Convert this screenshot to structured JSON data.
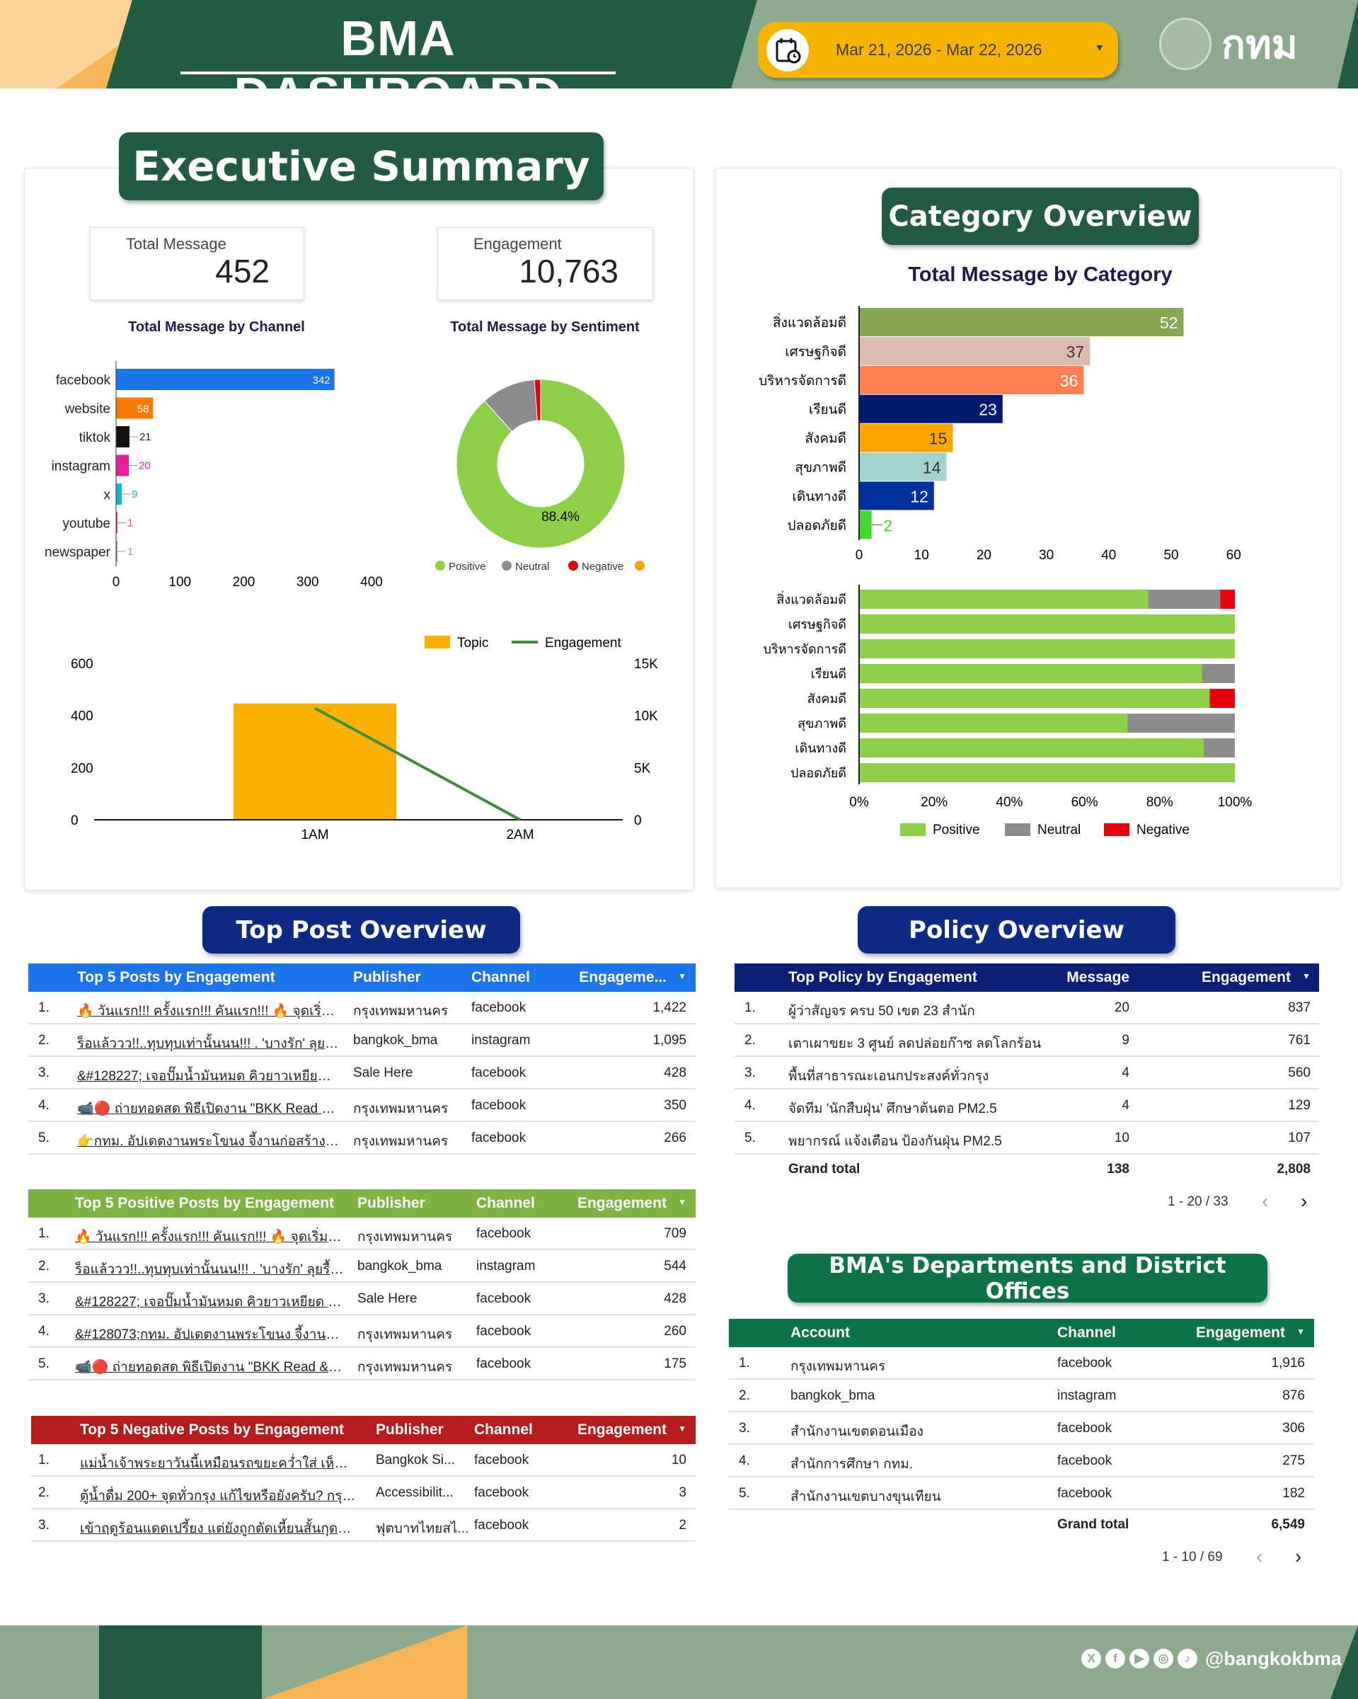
{
  "header": {
    "title": "BMA DASHBOARD",
    "date_range": "Mar 21, 2026 - Mar 22, 2026",
    "logo_text": "กทม",
    "calendar_icon": "calendar-clock-icon"
  },
  "exec": {
    "title": "Executive Summary",
    "kpis": [
      {
        "label": "Total Message",
        "value": "452"
      },
      {
        "label": "Engagement",
        "value": "10,763"
      }
    ]
  },
  "colors": {
    "dark_green": "#215c42",
    "positive": "#8bd046",
    "neutral": "#8c8c8c",
    "negative": "#e8000b",
    "topic": "#fbb100",
    "engagement_line": "#3c8c3c"
  },
  "chart_data": [
    {
      "type": "bar",
      "orientation": "horizontal",
      "title": "Total Message by Channel",
      "categories": [
        "facebook",
        "website",
        "tiktok",
        "instagram",
        "x",
        "youtube",
        "newspaper"
      ],
      "values": [
        342,
        58,
        21,
        20,
        9,
        1,
        1
      ],
      "colors": [
        "#1a73e8",
        "#f57c00",
        "#111111",
        "#e91e9c",
        "#12b5cb",
        "#d9485f",
        "#9e9e9e"
      ],
      "xlim": [
        0,
        400
      ],
      "xticks": [
        "0",
        "100",
        "200",
        "300",
        "400"
      ]
    },
    {
      "type": "pie",
      "donut": true,
      "title": "Total Message by Sentiment",
      "slices": [
        {
          "name": "Positive",
          "value": 88.4,
          "color": "#8bd046"
        },
        {
          "name": "Neutral",
          "value": 10.4,
          "color": "#8c8c8c"
        },
        {
          "name": "Negative",
          "value": 1.2,
          "color": "#e8000b"
        },
        {
          "name": "",
          "value": 0,
          "color": "#fba300"
        }
      ],
      "label": "88.4%",
      "legend": "bottom"
    },
    {
      "type": "bar+line",
      "categories": [
        "1AM",
        "2AM"
      ],
      "series": [
        {
          "name": "Topic",
          "type": "bar",
          "axis": "left",
          "values": [
            446,
            0
          ]
        },
        {
          "name": "Engagement",
          "type": "line",
          "axis": "right",
          "values": [
            10700,
            0
          ]
        }
      ],
      "ylim_left": [
        0,
        600
      ],
      "yticks_left": [
        "0",
        "200",
        "400",
        "600"
      ],
      "ylim_right": [
        0,
        15000
      ],
      "yticks_right": [
        "0",
        "5K",
        "10K",
        "15K"
      ],
      "legend": "top-right"
    },
    {
      "type": "bar",
      "orientation": "horizontal",
      "title": "Total Message by Category",
      "categories": [
        "สิ่งแวดล้อมดี",
        "เศรษฐกิจดี",
        "บริหารจัดการดี",
        "เรียนดี",
        "สังคมดี",
        "สุขภาพดี",
        "เดินทางดี",
        "ปลอดภัยดี"
      ],
      "values": [
        52,
        37,
        36,
        23,
        15,
        14,
        12,
        2
      ],
      "colors": [
        "#87a752",
        "#dbbcaf",
        "#ff7f50",
        "#001a6e",
        "#ffa500",
        "#a3d4cf",
        "#0033a0",
        "#44d62c"
      ],
      "label_colors": [
        "#ffffff",
        "#333333",
        "#ffffff",
        "#ffffff",
        "#333333",
        "#333333",
        "#ffffff",
        "#44d62c"
      ],
      "xlim": [
        0,
        60
      ],
      "xticks": [
        "0",
        "10",
        "20",
        "30",
        "40",
        "50",
        "60"
      ]
    },
    {
      "type": "bar",
      "stacked": "percent",
      "orientation": "horizontal",
      "categories": [
        "สิ่งแวดล้อมดี",
        "เศรษฐกิจดี",
        "บริหารจัดการดี",
        "เรียนดี",
        "สังคมดี",
        "สุขภาพดี",
        "เดินทางดี",
        "ปลอดภัยดี"
      ],
      "series": [
        {
          "name": "Positive",
          "values": [
            76.9,
            100,
            100,
            91.3,
            93.3,
            71.4,
            91.7,
            100
          ]
        },
        {
          "name": "Neutral",
          "values": [
            19.2,
            0,
            0,
            8.7,
            0,
            28.6,
            8.3,
            0
          ]
        },
        {
          "name": "Negative",
          "values": [
            3.9,
            0,
            0,
            0,
            6.7,
            0,
            0,
            0
          ]
        }
      ],
      "xticks": [
        "0%",
        "20%",
        "40%",
        "60%",
        "80%",
        "100%"
      ],
      "legend": "bottom"
    }
  ],
  "category": {
    "title": "Category Overview"
  },
  "top_post": {
    "title": "Top Post Overview"
  },
  "policy": {
    "title": "Policy Overview"
  },
  "dept": {
    "title": "BMA's Departments and District Offices"
  },
  "tables": [
    {
      "id": "top5",
      "color": "#1a73e8",
      "headers": [
        "Top 5 Posts by Engagement",
        "Publisher",
        "Channel",
        "Engageme..."
      ],
      "rows": [
        [
          "1.",
          "🔥 วันแรก!!! ครั้งแรก!!! คันแรก!!! 🔥 จุดเริ่มต้นครั้...",
          "กรุงเทพมหานคร",
          "facebook",
          "1,422"
        ],
        [
          "2.",
          "ร็อแล้ววว!!..ทุบทุบเท่านั้นนน!!! . 'บางรัก' ลุยรื้อถอนสิ่...",
          "bangkok_bma",
          "instagram",
          "1,095"
        ],
        [
          "3.",
          "&#128227; เจอปั๊มน้ำมันหมด คิวยาวเหยียด หรือ...",
          "Sale Here",
          "facebook",
          "428"
        ],
        [
          "4.",
          "📹🔴 ถ่ายทอดสด พิธีเปิดงาน \"BKK Read & Le...",
          "กรุงเทพมหานคร",
          "facebook",
          "350"
        ],
        [
          "5.",
          "👉กทม. อัปเดตงานพระโขนง จี้งานก่อสร้างล่าช้า ห...",
          "กรุงเทพมหานคร",
          "facebook",
          "266"
        ]
      ]
    },
    {
      "id": "pos5",
      "color": "#7cb342",
      "headers": [
        "Top 5 Positive Posts by Engagement",
        "Publisher",
        "Channel",
        "Engagement"
      ],
      "rows": [
        [
          "1.",
          "🔥 วันแรก!!! ครั้งแรก!!! คันแรก!!! 🔥 จุดเริ่มต้นครั้ง...",
          "กรุงเทพมหานคร",
          "facebook",
          "709"
        ],
        [
          "2.",
          "ร็อแล้ววว!!..ทุบทุบเท่านั้นนน!!! . 'บางรัก' ลุยรื้อถอนสิ่ง...",
          "bangkok_bma",
          "instagram",
          "544"
        ],
        [
          "3.",
          "&#128227; เจอปั๊มน้ำมันหมด คิวยาวเหยียด หรือส...",
          "Sale Here",
          "facebook",
          "428"
        ],
        [
          "4.",
          "&#128073;กทม. อัปเดตงานพระโขนง จี้งานก่อสร้า...",
          "กรุงเทพมหานคร",
          "facebook",
          "260"
        ],
        [
          "5.",
          "📹🔴 ถ่ายทอดสด พิธีเปิดงาน \"BKK Read & Lea...",
          "กรุงเทพมหานคร",
          "facebook",
          "175"
        ]
      ]
    },
    {
      "id": "neg5",
      "color": "#b71c1c",
      "headers": [
        "Top 5 Negative Posts by Engagement",
        "Publisher",
        "Channel",
        "Engagement"
      ],
      "rows": [
        [
          "1.",
          "แม่น้ำเจ้าพระยาวันนี้เหมือนรถขยะคว่ำใส่ เห็นแล้วโคตรเ...",
          "Bangkok Si...",
          "facebook",
          "10"
        ],
        [
          "2.",
          "ตู้น้ำดื่ม 200+ จุดทั่วกรุง แก้ไขหรือยังครับ? กรุงเทพมห...",
          "Accessibilit...",
          "facebook",
          "3"
        ],
        [
          "3.",
          "เข้าฤดูร้อนแดดเปรี้ยง แต่ยังถูกตัดเหี้ยนสั้นกุดอยู่อีก&#8...",
          "ฟุตบาทไทยสไ...",
          "facebook",
          "2"
        ]
      ]
    },
    {
      "id": "policy",
      "color": "#0a1f75",
      "headers": [
        "Top Policy by Engagement",
        "Message",
        "Engagement"
      ],
      "rows": [
        [
          "1.",
          "ผู้ว่าสัญจร ครบ 50 เขต 23 สำนัก",
          "20",
          "837"
        ],
        [
          "2.",
          "เตาเผาขยะ 3 ศูนย์ ลดปล่อยก๊าซ ลดโลกร้อน",
          "9",
          "761"
        ],
        [
          "3.",
          "พื้นที่สาธารณะเอนกประสงค์ทั่วกรุง",
          "4",
          "560"
        ],
        [
          "4.",
          "จัดทีม 'นักสืบฝุ่น' ศึกษาต้นตอ PM2.5",
          "4",
          "129"
        ],
        [
          "5.",
          "พยากรณ์ แจ้งเตือน ป้องกันฝุ่น PM2.5",
          "10",
          "107"
        ]
      ],
      "total": [
        "Grand total",
        "138",
        "2,808"
      ],
      "pager": "1 - 20 / 33"
    },
    {
      "id": "dept",
      "color": "#0b7347",
      "headers": [
        "Account",
        "Channel",
        "Engagement"
      ],
      "rows": [
        [
          "1.",
          "กรุงเทพมหานคร",
          "facebook",
          "1,916"
        ],
        [
          "2.",
          "bangkok_bma",
          "instagram",
          "876"
        ],
        [
          "3.",
          "สำนักงานเขตดอนเมือง",
          "facebook",
          "306"
        ],
        [
          "4.",
          "สำนักการศึกษา กทม.",
          "facebook",
          "275"
        ],
        [
          "5.",
          "สำนักงานเขตบางขุนเทียน",
          "facebook",
          "182"
        ]
      ],
      "total": [
        "Grand total",
        "6,549"
      ],
      "pager": "1 - 10 / 69"
    }
  ],
  "footer": {
    "handle": "@bangkokbma",
    "icons": [
      "x-icon",
      "facebook-icon",
      "youtube-icon",
      "instagram-icon",
      "tiktok-icon"
    ]
  }
}
